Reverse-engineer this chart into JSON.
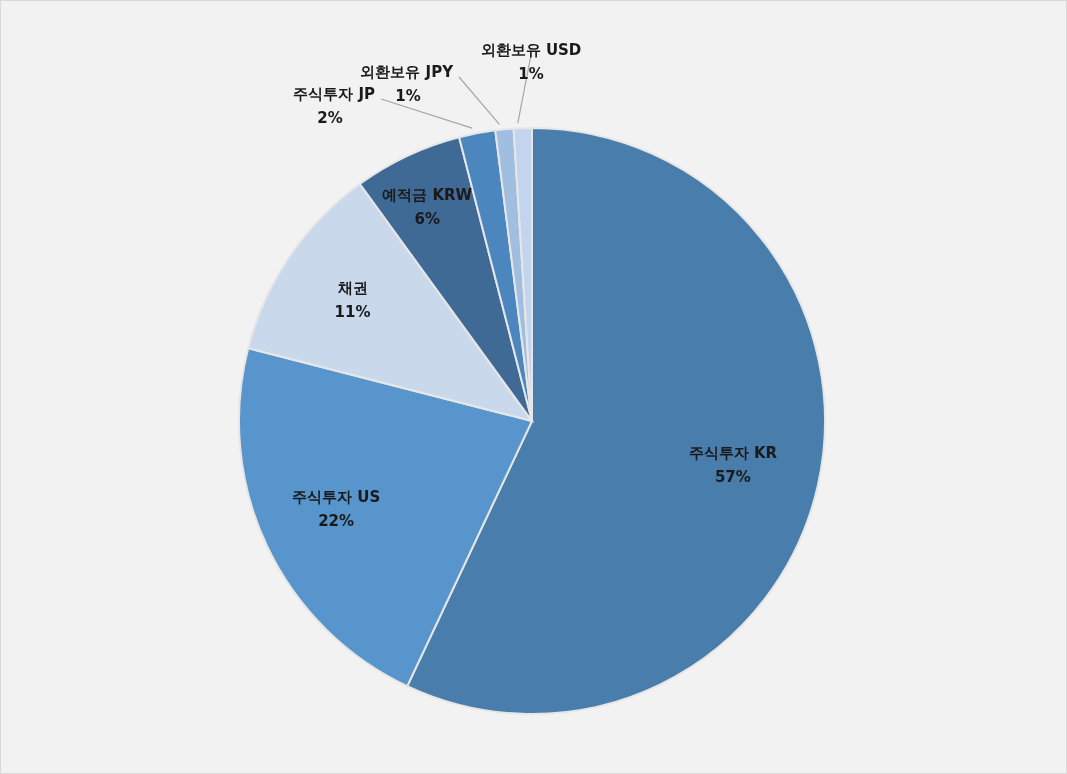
{
  "chart_data": {
    "type": "pie",
    "categories": [
      "주식투자 KR",
      "주식투자 US",
      "채권",
      "예적금 KRW",
      "주식투자 JP",
      "외환보유 JPY",
      "외환보유 USD"
    ],
    "values": [
      57,
      22,
      11,
      6,
      2,
      1,
      1
    ],
    "colors": [
      "#497dac",
      "#5895cc",
      "#cad8ec",
      "#3e6a95",
      "#4b86bf",
      "#a0bee0",
      "#c3d5ee"
    ],
    "value_labels": [
      "57%",
      "22%",
      "11%",
      "6%",
      "2%",
      "1%",
      "1%"
    ],
    "legend": false
  }
}
